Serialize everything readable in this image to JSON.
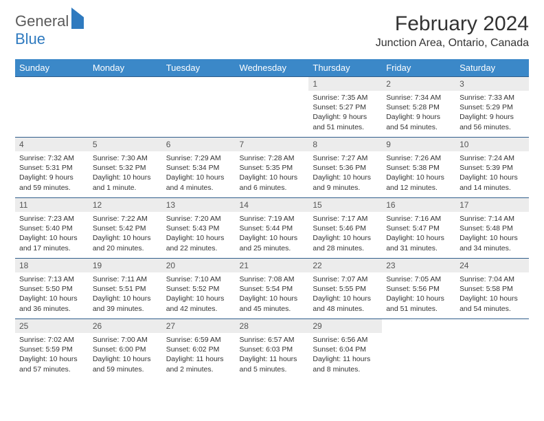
{
  "logo": {
    "text_general": "General",
    "text_blue": "Blue"
  },
  "title": {
    "month": "February 2024",
    "location": "Junction Area, Ontario, Canada"
  },
  "colors": {
    "header_bg": "#3b88c8",
    "header_text": "#ffffff",
    "cell_border": "#2f5d8a",
    "daynum_bg": "#ececec",
    "logo_gray": "#5a5a5a",
    "logo_blue": "#2f7abf"
  },
  "typography": {
    "month_fontsize": 30,
    "location_fontsize": 16,
    "dayheader_fontsize": 13,
    "daynum_fontsize": 12,
    "body_fontsize": 10.5
  },
  "calendar": {
    "day_headers": [
      "Sunday",
      "Monday",
      "Tuesday",
      "Wednesday",
      "Thursday",
      "Friday",
      "Saturday"
    ],
    "cells": [
      null,
      null,
      null,
      null,
      {
        "n": "1",
        "sr": "7:35 AM",
        "ss": "5:27 PM",
        "dl": "9 hours and 51 minutes."
      },
      {
        "n": "2",
        "sr": "7:34 AM",
        "ss": "5:28 PM",
        "dl": "9 hours and 54 minutes."
      },
      {
        "n": "3",
        "sr": "7:33 AM",
        "ss": "5:29 PM",
        "dl": "9 hours and 56 minutes."
      },
      {
        "n": "4",
        "sr": "7:32 AM",
        "ss": "5:31 PM",
        "dl": "9 hours and 59 minutes."
      },
      {
        "n": "5",
        "sr": "7:30 AM",
        "ss": "5:32 PM",
        "dl": "10 hours and 1 minute."
      },
      {
        "n": "6",
        "sr": "7:29 AM",
        "ss": "5:34 PM",
        "dl": "10 hours and 4 minutes."
      },
      {
        "n": "7",
        "sr": "7:28 AM",
        "ss": "5:35 PM",
        "dl": "10 hours and 6 minutes."
      },
      {
        "n": "8",
        "sr": "7:27 AM",
        "ss": "5:36 PM",
        "dl": "10 hours and 9 minutes."
      },
      {
        "n": "9",
        "sr": "7:26 AM",
        "ss": "5:38 PM",
        "dl": "10 hours and 12 minutes."
      },
      {
        "n": "10",
        "sr": "7:24 AM",
        "ss": "5:39 PM",
        "dl": "10 hours and 14 minutes."
      },
      {
        "n": "11",
        "sr": "7:23 AM",
        "ss": "5:40 PM",
        "dl": "10 hours and 17 minutes."
      },
      {
        "n": "12",
        "sr": "7:22 AM",
        "ss": "5:42 PM",
        "dl": "10 hours and 20 minutes."
      },
      {
        "n": "13",
        "sr": "7:20 AM",
        "ss": "5:43 PM",
        "dl": "10 hours and 22 minutes."
      },
      {
        "n": "14",
        "sr": "7:19 AM",
        "ss": "5:44 PM",
        "dl": "10 hours and 25 minutes."
      },
      {
        "n": "15",
        "sr": "7:17 AM",
        "ss": "5:46 PM",
        "dl": "10 hours and 28 minutes."
      },
      {
        "n": "16",
        "sr": "7:16 AM",
        "ss": "5:47 PM",
        "dl": "10 hours and 31 minutes."
      },
      {
        "n": "17",
        "sr": "7:14 AM",
        "ss": "5:48 PM",
        "dl": "10 hours and 34 minutes."
      },
      {
        "n": "18",
        "sr": "7:13 AM",
        "ss": "5:50 PM",
        "dl": "10 hours and 36 minutes."
      },
      {
        "n": "19",
        "sr": "7:11 AM",
        "ss": "5:51 PM",
        "dl": "10 hours and 39 minutes."
      },
      {
        "n": "20",
        "sr": "7:10 AM",
        "ss": "5:52 PM",
        "dl": "10 hours and 42 minutes."
      },
      {
        "n": "21",
        "sr": "7:08 AM",
        "ss": "5:54 PM",
        "dl": "10 hours and 45 minutes."
      },
      {
        "n": "22",
        "sr": "7:07 AM",
        "ss": "5:55 PM",
        "dl": "10 hours and 48 minutes."
      },
      {
        "n": "23",
        "sr": "7:05 AM",
        "ss": "5:56 PM",
        "dl": "10 hours and 51 minutes."
      },
      {
        "n": "24",
        "sr": "7:04 AM",
        "ss": "5:58 PM",
        "dl": "10 hours and 54 minutes."
      },
      {
        "n": "25",
        "sr": "7:02 AM",
        "ss": "5:59 PM",
        "dl": "10 hours and 57 minutes."
      },
      {
        "n": "26",
        "sr": "7:00 AM",
        "ss": "6:00 PM",
        "dl": "10 hours and 59 minutes."
      },
      {
        "n": "27",
        "sr": "6:59 AM",
        "ss": "6:02 PM",
        "dl": "11 hours and 2 minutes."
      },
      {
        "n": "28",
        "sr": "6:57 AM",
        "ss": "6:03 PM",
        "dl": "11 hours and 5 minutes."
      },
      {
        "n": "29",
        "sr": "6:56 AM",
        "ss": "6:04 PM",
        "dl": "11 hours and 8 minutes."
      },
      null,
      null
    ],
    "labels": {
      "sunrise": "Sunrise: ",
      "sunset": "Sunset: ",
      "daylight": "Daylight: "
    }
  }
}
